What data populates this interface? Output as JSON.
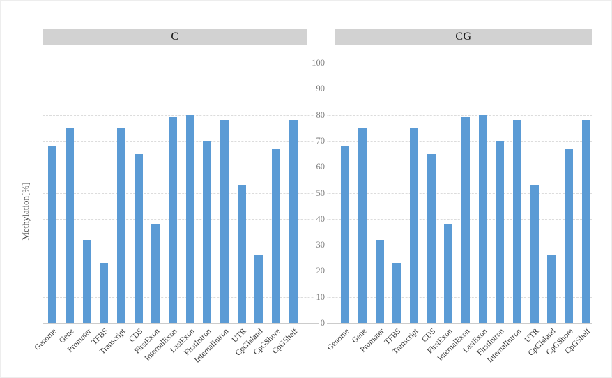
{
  "y_axis": {
    "label": "Methylation[%]",
    "ticks": [
      0,
      10,
      20,
      30,
      40,
      50,
      60,
      70,
      80,
      90,
      100
    ],
    "min": 0,
    "max": 100
  },
  "chart_data": [
    {
      "type": "bar",
      "title": "C",
      "categories": [
        "Genome",
        "Gene",
        "Promoter",
        "TFBS",
        "Transcript",
        "CDS",
        "FirstExon",
        "InternalExon",
        "LastExon",
        "FirstIntron",
        "InternalIntron",
        "UTR",
        "CpGIsland",
        "CpGShore",
        "CpGShelf"
      ],
      "values": [
        68,
        75,
        32,
        23,
        75,
        65,
        38,
        79,
        80,
        70,
        78,
        53,
        26,
        67,
        78
      ],
      "xlabel": "",
      "ylabel": "Methylation[%]",
      "ylim": [
        0,
        100
      ],
      "grid": "horizontal-dashed",
      "legend": "none"
    },
    {
      "type": "bar",
      "title": "CG",
      "categories": [
        "Genome",
        "Gene",
        "Promoter",
        "TFBS",
        "Transcript",
        "CDS",
        "FirstExon",
        "InternalExon",
        "LastExon",
        "FirstIntron",
        "InternalIntron",
        "UTR",
        "CpGIsland",
        "CpGShore",
        "CpGShelf"
      ],
      "values": [
        68,
        75,
        32,
        23,
        75,
        65,
        38,
        79,
        80,
        70,
        78,
        53,
        26,
        67,
        78
      ],
      "xlabel": "",
      "ylabel": "Methylation[%]",
      "ylim": [
        0,
        100
      ],
      "grid": "horizontal-dashed",
      "legend": "none"
    }
  ],
  "colors": {
    "bar": "#5B9BD5",
    "panel_header_bg": "#D2D2D2",
    "gridline": "#DCDCDC",
    "baseline": "#CCCCCC",
    "tick_label": "#7F7F7F",
    "category_label": "#3A3A3A",
    "axis_title": "#4D4D4D",
    "panel_title": "#141414"
  }
}
